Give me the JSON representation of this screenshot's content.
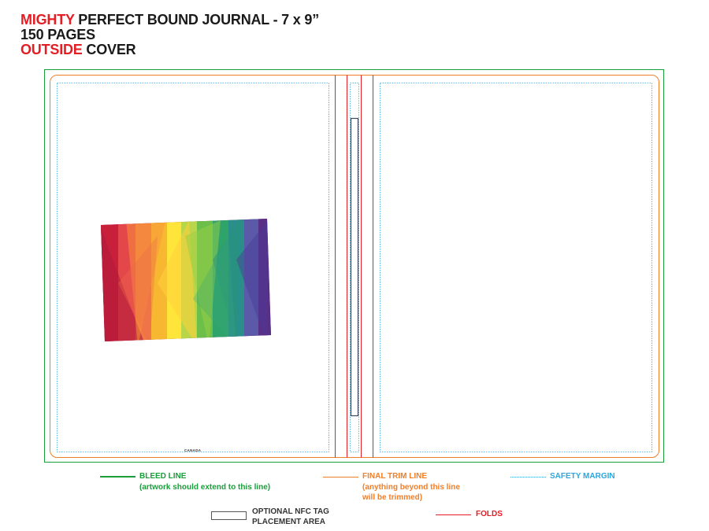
{
  "header": {
    "line1_red": "MIGHTY",
    "line1_rest": " PERFECT BOUND JOURNAL - 7 x 9”",
    "line2": "150 PAGES",
    "line3_red": "OUTSIDE",
    "line3_rest": " COVER"
  },
  "cover": {
    "back_cover_text": "CANADA"
  },
  "legend": {
    "bleed": {
      "title": "BLEED LINE",
      "note": "(artwork should extend to this line)",
      "color": "#1a9e3a"
    },
    "trim": {
      "title": "FINAL TRIM LINE",
      "note1": "(anything beyond this line",
      "note2": "will be trimmed)",
      "color": "#f07f2a"
    },
    "safety": {
      "title": "SAFETY MARGIN",
      "color": "#2aa8e0"
    },
    "nfc": {
      "line1": "OPTIONAL NFC TAG",
      "line2": "PLACEMENT AREA"
    },
    "folds": {
      "title": "FOLDS",
      "color": "#e31e24"
    }
  },
  "colors": {
    "accent_red": "#e31e24",
    "bleed_green": "#1a9e3a",
    "trim_orange": "#f07f2a",
    "safety_blue": "#2aa8e0"
  }
}
